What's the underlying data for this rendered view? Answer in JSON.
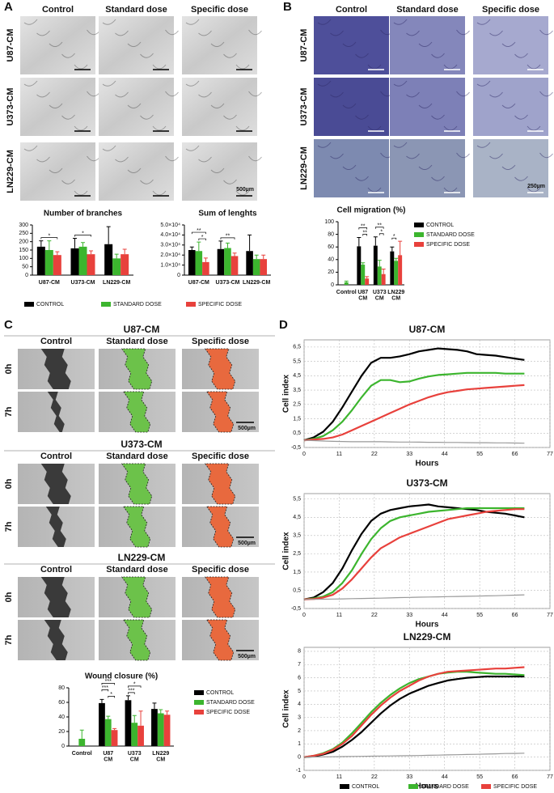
{
  "panels": {
    "panel_a": {
      "label": "A",
      "columns": [
        "Control",
        "Standard dose",
        "Specific dose"
      ],
      "rows": [
        "U87-CM",
        "U373-CM",
        "LN229-CM"
      ],
      "scale_bar": "500µm"
    },
    "panel_b": {
      "label": "B",
      "columns": [
        "Control",
        "Standard dose",
        "Specific dose"
      ],
      "rows": [
        "U87-CM",
        "U373-CM",
        "LN229-CM"
      ],
      "scale_bar": "250µm"
    },
    "panel_c": {
      "label": "C",
      "groups": [
        {
          "title": "U87-CM",
          "columns": [
            "Control",
            "Standard dose",
            "Specific dose"
          ],
          "rows": [
            "0h",
            "7h"
          ],
          "scale_bar": "500µm"
        },
        {
          "title": "U373-CM",
          "columns": [
            "Control",
            "Standard dose",
            "Specific dose"
          ],
          "rows": [
            "0h",
            "7h"
          ],
          "scale_bar": "500µm"
        },
        {
          "title": "LN229-CM",
          "columns": [
            "Control",
            "Standard dose",
            "Specific dose"
          ],
          "rows": [
            "0h",
            "7h"
          ],
          "scale_bar": "500µm"
        }
      ]
    },
    "panel_d": {
      "label": "D"
    }
  },
  "chart_data": [
    {
      "type": "bar",
      "title": "Number of branches",
      "categories": [
        "U87-CM",
        "U373-CM",
        "LN229-CM"
      ],
      "series": [
        {
          "name": "CONTROL",
          "color": "#000000",
          "values": [
            170,
            160,
            185
          ],
          "errors": [
            35,
            60,
            105
          ]
        },
        {
          "name": "STANDARD DOSE",
          "color": "#3cb52e",
          "values": [
            150,
            170,
            100
          ],
          "errors": [
            55,
            25,
            25
          ]
        },
        {
          "name": "SPECIFIC DOSE",
          "color": "#e8413c",
          "values": [
            120,
            125,
            125
          ],
          "errors": [
            20,
            20,
            30
          ]
        }
      ],
      "ylim": [
        0,
        300
      ],
      "yticks": [
        0,
        50,
        100,
        150,
        200,
        250,
        300
      ],
      "annotations": [
        "*",
        "*"
      ],
      "legend": "bottom"
    },
    {
      "type": "bar",
      "title": "Sum of lenghts",
      "categories": [
        "U87-CM",
        "U373-CM",
        "LN229-CM"
      ],
      "series": [
        {
          "color": "#000000",
          "values": [
            25000,
            26000,
            24000
          ],
          "errors": [
            3000,
            8000,
            16000
          ]
        },
        {
          "color": "#3cb52e",
          "values": [
            24000,
            27000,
            16000
          ],
          "errors": [
            9000,
            5000,
            4000
          ]
        },
        {
          "color": "#e8413c",
          "values": [
            13000,
            19000,
            16000
          ],
          "errors": [
            4000,
            3000,
            4000
          ]
        }
      ],
      "ylim": [
        0,
        50000
      ],
      "yticks": [
        0,
        {
          "value": 10000,
          "label": "1.0×10⁴"
        },
        {
          "value": 20000,
          "label": "2.0×10⁴"
        },
        {
          "value": 30000,
          "label": "3.0×10⁴"
        },
        {
          "value": 40000,
          "label": "4.0×10⁴"
        },
        {
          "value": 50000,
          "label": "5.0×10⁴"
        }
      ],
      "annotations": [
        "**",
        "*",
        "**"
      ]
    },
    {
      "type": "bar",
      "title": "Cell migration (%)",
      "categories": [
        "Control",
        "U87 CM",
        "U373 CM",
        "LN229 CM"
      ],
      "series": [
        {
          "name": "CONTROL",
          "color": "#000000",
          "values": [
            null,
            61,
            62,
            53
          ],
          "errors": [
            null,
            14,
            14,
            7
          ]
        },
        {
          "name": "STANDARD DOSE",
          "color": "#3cb52e",
          "values": [
            4,
            32,
            29,
            38
          ],
          "errors": [
            2,
            3,
            10,
            4
          ]
        },
        {
          "name": "SPECIFIC DOSE",
          "color": "#e8413c",
          "values": [
            null,
            10,
            17,
            47
          ],
          "errors": [
            null,
            3,
            8,
            22
          ]
        }
      ],
      "ylim": [
        0,
        100
      ],
      "yticks": [
        0,
        20,
        40,
        60,
        80,
        100
      ],
      "annotations": [
        "**",
        "**",
        "**",
        "*",
        "*"
      ],
      "legend": "right"
    },
    {
      "type": "bar",
      "title": "Wound closure (%)",
      "categories": [
        "Control",
        "U87 CM",
        "U373 CM",
        "LN229 CM"
      ],
      "series": [
        {
          "name": "CONTROL",
          "color": "#000000",
          "values": [
            null,
            59,
            63,
            51
          ],
          "errors": [
            null,
            5,
            6,
            8
          ]
        },
        {
          "name": "STANDARD DOSE",
          "color": "#3cb52e",
          "values": [
            10,
            37,
            32,
            45
          ],
          "errors": [
            12,
            4,
            10,
            5
          ]
        },
        {
          "name": "SPECIFIC DOSE",
          "color": "#e8413c",
          "values": [
            null,
            22,
            28,
            43
          ],
          "errors": [
            null,
            2,
            20,
            5
          ]
        }
      ],
      "ylim": [
        0,
        80
      ],
      "yticks": [
        0,
        20,
        40,
        60,
        80
      ],
      "annotations": [
        "***",
        "***",
        "*",
        "*",
        "***"
      ],
      "legend": "right"
    },
    {
      "type": "line",
      "title": "U87-CM",
      "xlabel": "Hours",
      "ylabel": "Cell index",
      "grid": true,
      "x": [
        0,
        3,
        6,
        9,
        12,
        15,
        18,
        21,
        24,
        27,
        30,
        33,
        36,
        39,
        42,
        45,
        48,
        51,
        54,
        57,
        60,
        63,
        66,
        69
      ],
      "series": [
        {
          "color": "#000000",
          "values": [
            0,
            0.2,
            0.6,
            1.3,
            2.3,
            3.4,
            4.5,
            5.4,
            5.75,
            5.75,
            5.85,
            6.0,
            6.2,
            6.3,
            6.4,
            6.35,
            6.3,
            6.2,
            6.0,
            5.95,
            5.9,
            5.8,
            5.7,
            5.6
          ]
        },
        {
          "color": "#3cb52e",
          "values": [
            0,
            0.1,
            0.3,
            0.7,
            1.3,
            2.1,
            3.0,
            3.8,
            4.2,
            4.2,
            4.05,
            4.1,
            4.3,
            4.45,
            4.55,
            4.6,
            4.65,
            4.7,
            4.7,
            4.7,
            4.7,
            4.65,
            4.65,
            4.65
          ]
        },
        {
          "color": "#e8413c",
          "values": [
            0,
            0.05,
            0.1,
            0.2,
            0.4,
            0.7,
            1.0,
            1.3,
            1.6,
            1.9,
            2.2,
            2.5,
            2.75,
            3.0,
            3.2,
            3.35,
            3.45,
            3.55,
            3.6,
            3.65,
            3.7,
            3.75,
            3.8,
            3.85
          ]
        },
        {
          "color": "#999999",
          "values": [
            0,
            -0.02,
            -0.05,
            -0.07,
            -0.08,
            -0.1,
            -0.1,
            -0.1,
            -0.1,
            -0.11,
            -0.12,
            -0.12,
            -0.13,
            -0.14,
            -0.14,
            -0.15,
            -0.15,
            -0.16,
            -0.17,
            -0.17,
            -0.18,
            -0.18,
            -0.19,
            -0.2
          ]
        }
      ],
      "xlim": [
        0,
        77
      ],
      "xticks": [
        0,
        11,
        22,
        33,
        44,
        55,
        66,
        77
      ],
      "ylim": [
        -0.5,
        7
      ],
      "yticks": [
        {
          "value": -0.5,
          "label": "-0,5"
        },
        {
          "value": 0.5,
          "label": "0,5"
        },
        {
          "value": 1.5,
          "label": "1,5"
        },
        {
          "value": 2.5,
          "label": "2,5"
        },
        {
          "value": 3.5,
          "label": "3,5"
        },
        {
          "value": 4.5,
          "label": "4,5"
        },
        {
          "value": 5.5,
          "label": "5,5"
        },
        {
          "value": 6.5,
          "label": "6,5"
        }
      ]
    },
    {
      "type": "line",
      "title": "U373-CM",
      "xlabel": "Hours",
      "ylabel": "Cell index",
      "grid": true,
      "x": [
        0,
        3,
        6,
        9,
        12,
        15,
        18,
        21,
        24,
        27,
        30,
        33,
        36,
        39,
        42,
        45,
        48,
        51,
        54,
        57,
        60,
        63,
        66,
        69
      ],
      "series": [
        {
          "color": "#000000",
          "values": [
            0,
            0.1,
            0.4,
            0.9,
            1.7,
            2.7,
            3.6,
            4.3,
            4.7,
            4.9,
            5.0,
            5.1,
            5.15,
            5.2,
            5.1,
            5.05,
            5.0,
            4.95,
            4.9,
            4.8,
            4.75,
            4.7,
            4.6,
            4.5
          ]
        },
        {
          "color": "#3cb52e",
          "values": [
            0,
            0.05,
            0.15,
            0.4,
            0.9,
            1.6,
            2.5,
            3.3,
            3.9,
            4.3,
            4.5,
            4.6,
            4.7,
            4.8,
            4.85,
            4.9,
            4.95,
            5.0,
            5.0,
            5.0,
            5.0,
            5.0,
            5.0,
            5.0
          ]
        },
        {
          "color": "#e8413c",
          "values": [
            0,
            0.02,
            0.1,
            0.25,
            0.6,
            1.1,
            1.7,
            2.3,
            2.8,
            3.1,
            3.4,
            3.6,
            3.8,
            4.0,
            4.2,
            4.4,
            4.5,
            4.6,
            4.7,
            4.8,
            4.85,
            4.9,
            4.95,
            4.95
          ]
        },
        {
          "color": "#999999",
          "values": [
            0,
            0,
            0.01,
            0.02,
            0.03,
            0.04,
            0.05,
            0.06,
            0.07,
            0.08,
            0.1,
            0.11,
            0.12,
            0.13,
            0.14,
            0.15,
            0.16,
            0.17,
            0.18,
            0.19,
            0.2,
            0.22,
            0.23,
            0.25
          ]
        }
      ],
      "xlim": [
        0,
        77
      ],
      "xticks": [
        0,
        11,
        22,
        33,
        44,
        55,
        66,
        77
      ],
      "ylim": [
        -0.5,
        5.8
      ],
      "yticks": [
        {
          "value": -0.5,
          "label": "-0,5"
        },
        {
          "value": 0.5,
          "label": "0,5"
        },
        {
          "value": 1.5,
          "label": "1,5"
        },
        {
          "value": 2.5,
          "label": "2,5"
        },
        {
          "value": 3.5,
          "label": "3,5"
        },
        {
          "value": 4.5,
          "label": "4,5"
        },
        {
          "value": 5.5,
          "label": "5,5"
        }
      ]
    },
    {
      "type": "line",
      "title": "LN229-CM",
      "xlabel": "Hours",
      "ylabel": "Cell index",
      "grid": true,
      "legend": "bottom",
      "x": [
        0,
        3,
        6,
        9,
        12,
        15,
        18,
        21,
        24,
        27,
        30,
        33,
        36,
        39,
        42,
        45,
        48,
        51,
        54,
        57,
        60,
        63,
        66,
        69
      ],
      "series": [
        {
          "name": "CONTROL",
          "color": "#000000",
          "values": [
            0,
            0.05,
            0.2,
            0.4,
            0.8,
            1.3,
            1.9,
            2.6,
            3.3,
            3.9,
            4.4,
            4.8,
            5.1,
            5.4,
            5.6,
            5.8,
            5.9,
            6.0,
            6.05,
            6.1,
            6.1,
            6.1,
            6.1,
            6.1
          ]
        },
        {
          "name": "STANDARD DOSE",
          "color": "#3cb52e",
          "values": [
            0,
            0.1,
            0.3,
            0.6,
            1.1,
            1.8,
            2.6,
            3.4,
            4.1,
            4.7,
            5.2,
            5.6,
            5.9,
            6.1,
            6.3,
            6.4,
            6.45,
            6.45,
            6.4,
            6.35,
            6.3,
            6.3,
            6.25,
            6.2
          ]
        },
        {
          "name": "SPECIFIC DOSE",
          "color": "#e8413c",
          "values": [
            0,
            0.1,
            0.25,
            0.55,
            1.0,
            1.6,
            2.4,
            3.2,
            3.9,
            4.5,
            5.0,
            5.4,
            5.8,
            6.1,
            6.3,
            6.45,
            6.5,
            6.55,
            6.6,
            6.65,
            6.7,
            6.7,
            6.75,
            6.8
          ]
        },
        {
          "color": "#999999",
          "values": [
            0,
            0.01,
            0.02,
            0.03,
            0.04,
            0.05,
            0.06,
            0.07,
            0.08,
            0.09,
            0.1,
            0.11,
            0.12,
            0.14,
            0.15,
            0.17,
            0.18,
            0.2,
            0.21,
            0.23,
            0.25,
            0.27,
            0.28,
            0.3
          ]
        }
      ],
      "xlim": [
        0,
        77
      ],
      "xticks": [
        0,
        11,
        22,
        33,
        44,
        55,
        66,
        77
      ],
      "ylim": [
        -1,
        8.3
      ],
      "yticks": [
        -1,
        0,
        1,
        2,
        3,
        4,
        5,
        6,
        7,
        8
      ]
    }
  ]
}
